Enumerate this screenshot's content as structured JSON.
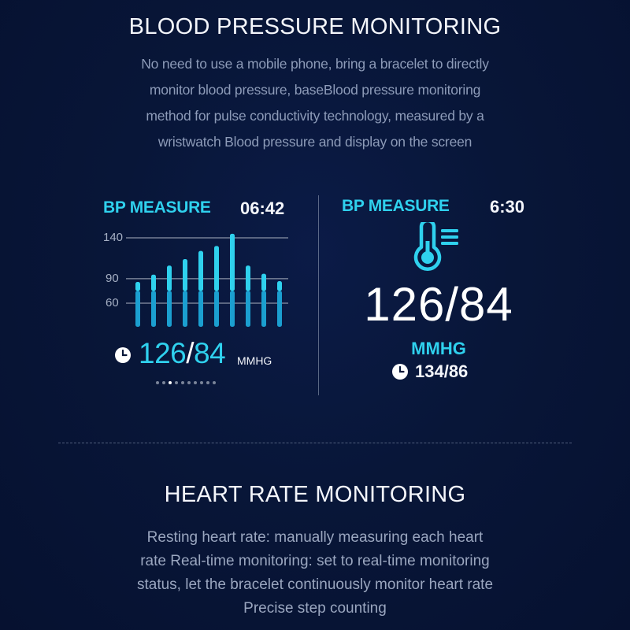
{
  "bp_section": {
    "title": "BLOOD PRESSURE MONITORING",
    "description_lines": [
      "No need to use a mobile phone, bring a bracelet to directly",
      "monitor blood pressure, baseBlood pressure monitoring",
      "method for pulse conductivity technology, measured by a",
      "wristwatch Blood pressure and display on the screen"
    ]
  },
  "left_screen": {
    "label": "BP MEASURE",
    "time": "06:42",
    "y_ticks": [
      "140",
      "90",
      "60"
    ],
    "reading_systolic": "126",
    "reading_separator": "/",
    "reading_diastolic": "84",
    "unit": "MMHG",
    "page_dots": 10,
    "active_dot": 2
  },
  "right_screen": {
    "label": "BP MEASURE",
    "time": "6:30",
    "reading": "126/84",
    "unit": "MMHG",
    "previous_reading": "134/86"
  },
  "hr_section": {
    "title": "HEART RATE MONITORING",
    "description_lines": [
      "Resting heart rate: manually measuring each heart",
      "rate Real-time monitoring: set to real-time monitoring",
      "status, let the bracelet continuously monitor heart rate",
      "Precise step counting"
    ]
  },
  "chart_data": {
    "type": "bar",
    "title": "",
    "y_ticks": [
      140,
      90,
      60
    ],
    "ylim": [
      30,
      150
    ],
    "series": [
      {
        "values": [
          86,
          95,
          106,
          114,
          124,
          130,
          145,
          106,
          96,
          87
        ]
      },
      {
        "values": [
          30,
          30,
          30,
          30,
          30,
          30,
          30,
          30,
          30,
          30
        ]
      }
    ],
    "colors": {
      "upper": "#2fd1ee",
      "lower": "#1b9fd0"
    }
  },
  "colors": {
    "accent": "#2fd1ee",
    "background": "#081638"
  }
}
